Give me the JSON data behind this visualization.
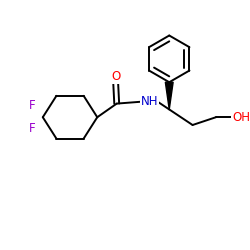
{
  "bg_color": "#ffffff",
  "bond_color": "#000000",
  "bond_width": 1.4,
  "atom_colors": {
    "O": "#ff0000",
    "N": "#0000cd",
    "F": "#9900cc",
    "H": "#000000",
    "C": "#000000"
  },
  "font_size_atom": 8.5,
  "figsize": [
    2.5,
    2.5
  ],
  "dpi": 100,
  "xlim": [
    0,
    250
  ],
  "ylim": [
    0,
    250
  ]
}
